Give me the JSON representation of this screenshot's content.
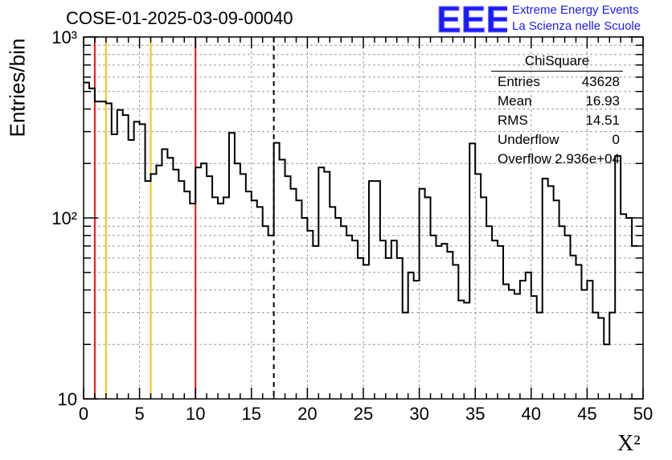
{
  "title": "COSE-01-2025-03-09-00040",
  "logo": {
    "mark": "EEE",
    "line1": "Extreme Energy Events",
    "line2": "La Scienza nelle Scuole",
    "color": "#1a1aff"
  },
  "stats": {
    "title": "ChiSquare",
    "rows": [
      {
        "key": "Entries",
        "value": "43628"
      },
      {
        "key": "Mean",
        "value": "16.93"
      },
      {
        "key": "RMS",
        "value": "14.51"
      },
      {
        "key": "Underflow",
        "value": "0"
      },
      {
        "key": "Overflow",
        "value": "2.936e+04"
      }
    ]
  },
  "chart_data": {
    "type": "histogram",
    "title": "COSE-01-2025-03-09-00040",
    "xlabel": "X²",
    "ylabel": "Entries/bin",
    "xlim": [
      0,
      50
    ],
    "ylim": [
      10,
      1000
    ],
    "yscale": "log",
    "grid": true,
    "bin_width": 0.5,
    "x_ticks": [
      "0",
      "5",
      "10",
      "15",
      "20",
      "25",
      "30",
      "35",
      "40",
      "45",
      "50"
    ],
    "y_ticks": [
      {
        "value": 10,
        "label": "10"
      },
      {
        "value": 100,
        "label": "10²"
      },
      {
        "value": 1000,
        "label": "10³"
      }
    ],
    "values": [
      560,
      520,
      440,
      440,
      430,
      290,
      395,
      370,
      270,
      340,
      330,
      160,
      175,
      195,
      240,
      215,
      185,
      160,
      140,
      120,
      190,
      200,
      170,
      130,
      120,
      130,
      295,
      200,
      175,
      140,
      125,
      115,
      90,
      80,
      260,
      210,
      170,
      145,
      125,
      100,
      85,
      70,
      190,
      180,
      115,
      100,
      90,
      80,
      75,
      60,
      55,
      160,
      160,
      75,
      60,
      75,
      60,
      30,
      50,
      45,
      145,
      130,
      80,
      70,
      72,
      65,
      55,
      35,
      34,
      258,
      175,
      130,
      90,
      75,
      70,
      43,
      40,
      38,
      45,
      50,
      37,
      30,
      165,
      150,
      125,
      90,
      80,
      62,
      55,
      40,
      45,
      30,
      28,
      20,
      30,
      220,
      105,
      100,
      70
    ],
    "vertical_lines": [
      {
        "x": 1,
        "color": "#ee1111",
        "style": "solid"
      },
      {
        "x": 2,
        "color": "#f2c21b",
        "style": "solid"
      },
      {
        "x": 6,
        "color": "#f2c21b",
        "style": "solid"
      },
      {
        "x": 10,
        "color": "#ee1111",
        "style": "solid"
      },
      {
        "x": 17,
        "color": "#000000",
        "style": "dashed"
      }
    ]
  }
}
